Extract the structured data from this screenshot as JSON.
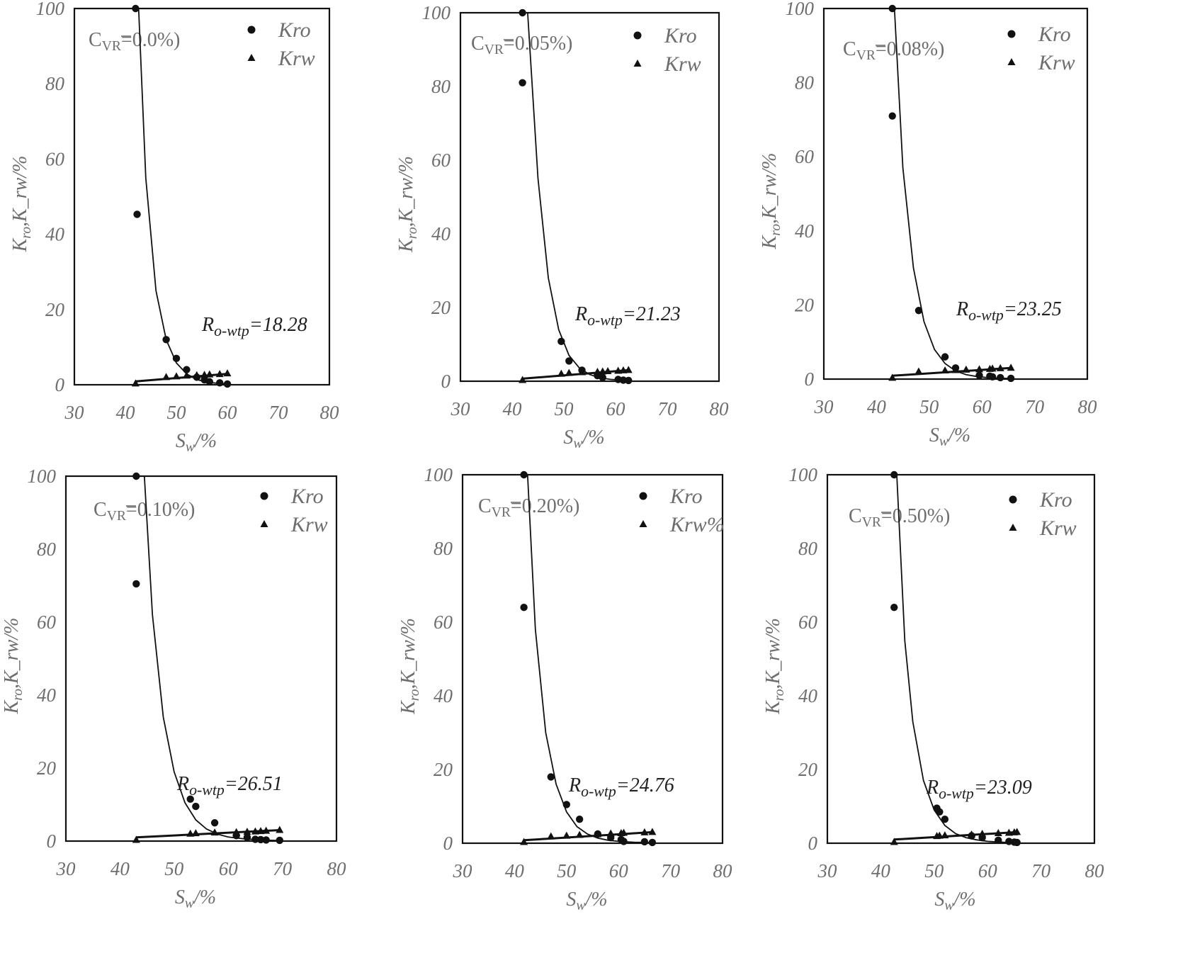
{
  "shared": {
    "xlabel": "S_w/%",
    "ylabel": "K_ro,K_rw/%",
    "xticks": [
      "30",
      "40",
      "50",
      "60",
      "70",
      "80"
    ],
    "yticks": [
      "0",
      "20",
      "40",
      "60",
      "80",
      "100"
    ]
  },
  "chart_data": [
    {
      "type": "scatter",
      "title": "C_VR=0.0%)",
      "xlabel": "S_w/%",
      "ylabel": "K_ro,K_rw/%",
      "xlim": [
        30,
        80
      ],
      "ylim": [
        0,
        100
      ],
      "legend": {
        "kro": "Kro",
        "krw": "Krw"
      },
      "annotation": "R_o-wtp=18.28",
      "series": [
        {
          "name": "Kro",
          "marker": "circle",
          "x": [
            42.0,
            42.3,
            48.0,
            50.0,
            52.0,
            54.0,
            55.5,
            56.5,
            58.5,
            60.0
          ],
          "y": [
            100,
            45.3,
            12.0,
            7.0,
            4.0,
            2.0,
            1.3,
            0.8,
            0.5,
            0.2
          ]
        },
        {
          "name": "Krw",
          "marker": "triangle",
          "x": [
            42.0,
            48.0,
            50.0,
            52.0,
            54.0,
            55.5,
            56.5,
            58.5,
            60.0
          ],
          "y": [
            0.3,
            2.0,
            2.2,
            2.4,
            2.5,
            2.6,
            2.7,
            2.8,
            3.0
          ]
        },
        {
          "name": "Kro fit",
          "type": "line",
          "x": [
            42.6,
            44.0,
            46.0,
            48.0,
            50.0,
            52.0,
            54.0,
            56.0,
            58.0,
            60.0
          ],
          "y": [
            100,
            55.0,
            25.0,
            12.0,
            5.8,
            2.9,
            1.4,
            0.7,
            0.4,
            0.2
          ]
        },
        {
          "name": "Krw fit",
          "type": "line",
          "x": [
            42.0,
            60.0
          ],
          "y": [
            0.9,
            2.9
          ]
        }
      ]
    },
    {
      "type": "scatter",
      "title": "C_VR=0.05%)",
      "xlabel": "S_w/%",
      "ylabel": "K_ro,K_rw/%",
      "xlim": [
        30,
        80
      ],
      "ylim": [
        0,
        100
      ],
      "legend": {
        "kro": "Kro",
        "krw": "Krw"
      },
      "annotation": "R_o-wtp=21.23",
      "series": [
        {
          "name": "Kro",
          "marker": "circle",
          "x": [
            42.0,
            42.0,
            49.5,
            51.0,
            53.5,
            56.5,
            57.5,
            60.5,
            61.5,
            62.5
          ],
          "y": [
            100,
            81.0,
            10.8,
            5.5,
            3.0,
            1.5,
            1.0,
            0.5,
            0.3,
            0.2
          ]
        },
        {
          "name": "Krw",
          "marker": "triangle",
          "x": [
            42.0,
            49.5,
            51.0,
            53.5,
            56.5,
            57.5,
            58.5,
            60.5,
            61.5,
            62.5
          ],
          "y": [
            0.3,
            2.0,
            2.2,
            2.4,
            2.5,
            2.6,
            2.7,
            2.8,
            2.9,
            3.0
          ]
        },
        {
          "name": "Kro fit",
          "type": "line",
          "x": [
            43.0,
            45.0,
            47.0,
            49.0,
            51.0,
            53.0,
            55.0,
            57.0,
            59.0,
            62.0
          ],
          "y": [
            100,
            55.0,
            28.0,
            14.0,
            7.0,
            3.6,
            1.8,
            0.9,
            0.5,
            0.2
          ]
        },
        {
          "name": "Krw fit",
          "type": "line",
          "x": [
            42.0,
            62.5
          ],
          "y": [
            0.7,
            3.0
          ]
        }
      ]
    },
    {
      "type": "scatter",
      "title": "C_VR=0.08%)",
      "xlabel": "S_w/%",
      "ylabel": "K_ro,K_rw/%",
      "xlim": [
        30,
        80
      ],
      "ylim": [
        0,
        100
      ],
      "legend": {
        "kro": "Kro",
        "krw": "Krw"
      },
      "annotation": "R_o-wtp=23.25",
      "series": [
        {
          "name": "Kro",
          "marker": "circle",
          "x": [
            43.0,
            43.0,
            48.0,
            53.0,
            55.0,
            59.5,
            61.5,
            62.0,
            63.5,
            65.5
          ],
          "y": [
            100,
            71.0,
            18.5,
            6.0,
            3.0,
            1.0,
            0.8,
            0.6,
            0.4,
            0.2
          ]
        },
        {
          "name": "Krw",
          "marker": "triangle",
          "x": [
            43.0,
            48.0,
            53.0,
            55.0,
            57.0,
            59.5,
            61.5,
            62.0,
            63.5,
            65.5
          ],
          "y": [
            0.3,
            2.0,
            2.3,
            2.4,
            2.5,
            2.6,
            2.7,
            2.8,
            2.9,
            3.0
          ]
        },
        {
          "name": "Krw fit",
          "type": "line",
          "x": [
            43.0,
            65.5
          ],
          "y": [
            0.9,
            3.0
          ]
        },
        {
          "name": "Kro fit",
          "type": "line",
          "x": [
            43.4,
            45.0,
            47.0,
            49.0,
            51.0,
            53.0,
            55.0,
            57.0,
            59.0,
            61.0,
            63.0,
            65.5
          ],
          "y": [
            100,
            57.0,
            30.0,
            15.5,
            8.0,
            4.2,
            2.2,
            1.2,
            0.7,
            0.4,
            0.25,
            0.15
          ]
        }
      ]
    },
    {
      "type": "scatter",
      "title": "C_VR=0.10%)",
      "xlabel": "S_w/%",
      "ylabel": "K_ro,K_rw/%",
      "xlim": [
        30,
        80
      ],
      "ylim": [
        0,
        100
      ],
      "legend": {
        "kro": "Kro",
        "krw": "Krw"
      },
      "annotation": "R_o-wtp=26.51",
      "series": [
        {
          "name": "Kro",
          "marker": "circle",
          "x": [
            43.0,
            43.0,
            53.0,
            54.0,
            57.5,
            61.5,
            63.5,
            65.0,
            66.0,
            67.0,
            69.5
          ],
          "y": [
            100,
            70.5,
            11.5,
            9.5,
            5.0,
            1.5,
            1.0,
            0.5,
            0.4,
            0.3,
            0.2
          ]
        },
        {
          "name": "Krw",
          "marker": "triangle",
          "x": [
            43.0,
            53.0,
            54.0,
            57.5,
            61.5,
            63.5,
            65.0,
            66.0,
            67.0,
            69.5
          ],
          "y": [
            0.3,
            2.0,
            2.1,
            2.3,
            2.4,
            2.5,
            2.6,
            2.7,
            2.8,
            3.0
          ]
        },
        {
          "name": "Kro fit",
          "type": "line",
          "x": [
            44.5,
            46.0,
            48.0,
            50.0,
            52.0,
            54.0,
            56.0,
            58.0,
            60.0,
            63.0,
            66.0,
            69.5
          ],
          "y": [
            100,
            62.0,
            34.0,
            19.0,
            10.5,
            5.8,
            3.3,
            1.9,
            1.1,
            0.6,
            0.3,
            0.15
          ]
        },
        {
          "name": "Krw fit",
          "type": "line",
          "x": [
            43.0,
            69.5
          ],
          "y": [
            1.0,
            3.0
          ]
        }
      ]
    },
    {
      "type": "scatter",
      "title": "C_VR=0.20%)",
      "xlabel": "S_w/%",
      "ylabel": "K_ro,K_rw/%",
      "xlim": [
        30,
        80
      ],
      "ylim": [
        0,
        100
      ],
      "legend": {
        "kro": "Kro",
        "krw": "Krw%"
      },
      "annotation": "R_o-wtp=24.76",
      "series": [
        {
          "name": "Kro",
          "marker": "circle",
          "x": [
            41.8,
            41.8,
            47.0,
            50.0,
            52.5,
            56.0,
            58.5,
            60.5,
            61.0,
            65.0,
            66.5
          ],
          "y": [
            100,
            64.0,
            18.0,
            10.5,
            6.5,
            2.5,
            1.5,
            1.0,
            0.5,
            0.4,
            0.2
          ]
        },
        {
          "name": "Krw",
          "marker": "triangle",
          "x": [
            41.8,
            47.0,
            50.0,
            52.5,
            56.0,
            58.5,
            60.5,
            61.0,
            65.0,
            66.5
          ],
          "y": [
            0.3,
            1.8,
            2.0,
            2.2,
            2.4,
            2.6,
            2.7,
            2.8,
            2.9,
            3.0
          ]
        },
        {
          "name": "Kro fit",
          "type": "line",
          "x": [
            42.5,
            44.0,
            46.0,
            48.0,
            50.0,
            52.0,
            54.0,
            56.0,
            58.0,
            60.0,
            63.0,
            66.5
          ],
          "y": [
            100,
            58.0,
            30.0,
            16.0,
            8.5,
            4.5,
            2.5,
            1.4,
            0.8,
            0.5,
            0.25,
            0.15
          ]
        },
        {
          "name": "Krw fit",
          "type": "line",
          "x": [
            41.8,
            66.5
          ],
          "y": [
            0.8,
            3.0
          ]
        }
      ]
    },
    {
      "type": "scatter",
      "title": "C_VR=0.50%)",
      "xlabel": "S_w/%",
      "ylabel": "K_ro,K_rw/%",
      "xlim": [
        30,
        80
      ],
      "ylim": [
        0,
        100
      ],
      "legend": {
        "kro": "Kro",
        "krw": "Krw"
      },
      "annotation": "R_o-wtp=23.09",
      "series": [
        {
          "name": "Kro",
          "marker": "circle",
          "x": [
            42.5,
            42.5,
            50.5,
            51.0,
            52.0,
            57.0,
            59.0,
            62.0,
            64.0,
            65.0,
            65.5
          ],
          "y": [
            100,
            64.0,
            9.5,
            8.5,
            6.5,
            2.0,
            1.5,
            0.8,
            0.5,
            0.3,
            0.2
          ]
        },
        {
          "name": "Krw",
          "marker": "triangle",
          "x": [
            42.5,
            50.5,
            51.0,
            52.0,
            57.0,
            59.0,
            62.0,
            64.0,
            65.0,
            65.5
          ],
          "y": [
            0.3,
            1.9,
            2.0,
            2.1,
            2.3,
            2.5,
            2.7,
            2.8,
            2.9,
            3.0
          ]
        },
        {
          "name": "Kro fit",
          "type": "line",
          "x": [
            43.0,
            44.5,
            46.0,
            48.0,
            50.0,
            52.0,
            54.0,
            56.0,
            58.0,
            60.0,
            63.0,
            65.5
          ],
          "y": [
            100,
            55.0,
            33.0,
            17.0,
            9.0,
            4.8,
            2.6,
            1.5,
            0.9,
            0.5,
            0.25,
            0.15
          ]
        },
        {
          "name": "Krw fit",
          "type": "line",
          "x": [
            42.5,
            65.5
          ],
          "y": [
            1.0,
            3.0
          ]
        }
      ]
    }
  ]
}
